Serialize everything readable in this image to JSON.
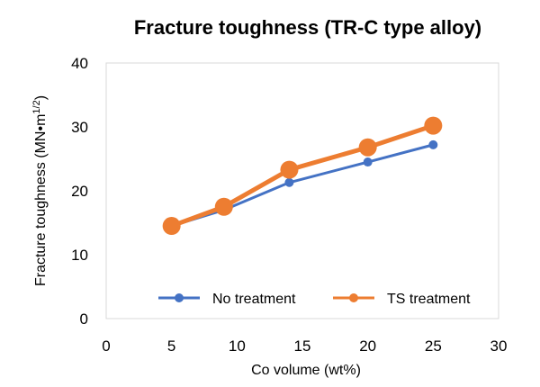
{
  "chart_data": {
    "type": "line",
    "title": "Fracture toughness (TR-C type alloy)",
    "xlabel": "Co volume (wt%)",
    "ylabel": "Fracture toughness (MN•m",
    "ylabel_sup": "1/2",
    "ylabel_close": ")",
    "xlim": [
      0,
      30
    ],
    "ylim": [
      0,
      40
    ],
    "xticks": [
      0,
      5,
      10,
      15,
      20,
      25,
      30
    ],
    "yticks": [
      0,
      10,
      20,
      30,
      40
    ],
    "grid": false,
    "legend_position": "bottom",
    "series": [
      {
        "name": "No treatment",
        "color": "#4472C4",
        "x": [
          5,
          9,
          14,
          20,
          25
        ],
        "y": [
          14.5,
          17.0,
          21.3,
          24.5,
          27.2
        ]
      },
      {
        "name": "TS treatment",
        "color": "#ED7D31",
        "x": [
          5,
          9,
          14,
          20,
          25
        ],
        "y": [
          14.5,
          17.5,
          23.3,
          26.8,
          30.2
        ]
      }
    ]
  }
}
